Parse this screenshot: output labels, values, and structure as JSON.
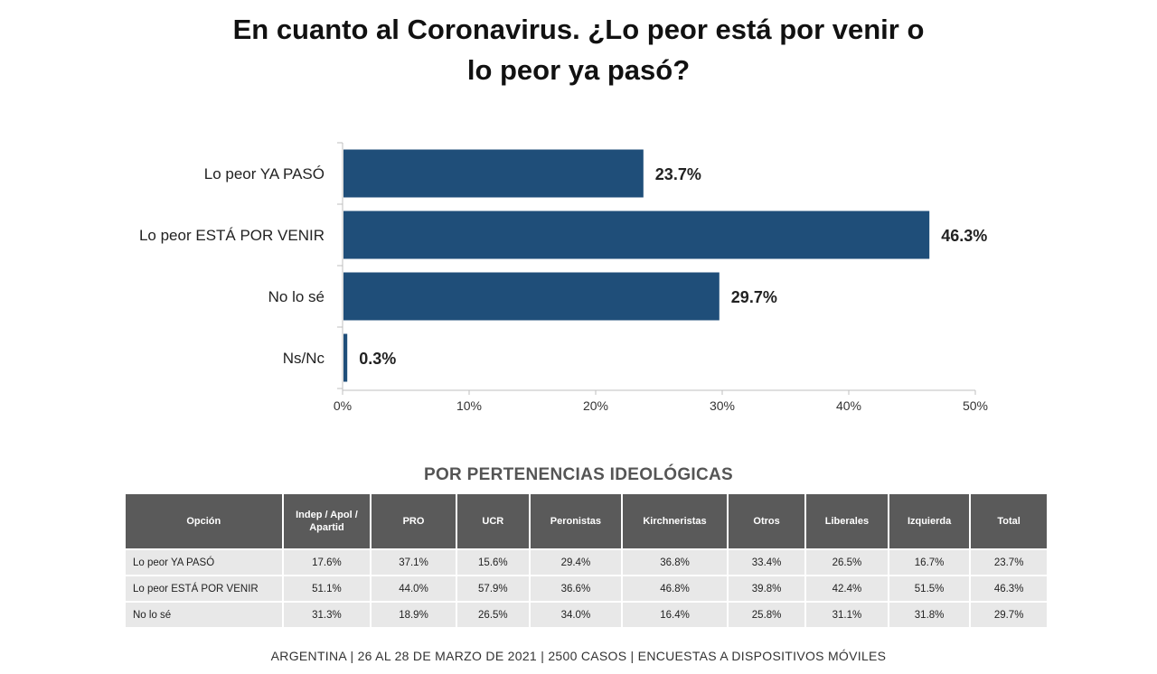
{
  "title": {
    "line1": "En cuanto al Coronavirus. ¿Lo peor está por venir o",
    "line2": "lo peor ya pasó?"
  },
  "chart_data": {
    "type": "bar",
    "orientation": "horizontal",
    "categories": [
      "Lo peor YA PASÓ",
      "Lo peor ESTÁ POR VENIR",
      "No lo sé",
      "Ns/Nc"
    ],
    "values": [
      23.7,
      46.3,
      29.7,
      0.3
    ],
    "value_labels": [
      "23.7%",
      "46.3%",
      "29.7%",
      "0.3%"
    ],
    "xlim": [
      0,
      50
    ],
    "xticks": [
      0,
      10,
      20,
      30,
      40,
      50
    ],
    "xtick_labels": [
      "0%",
      "10%",
      "20%",
      "30%",
      "40%",
      "50%"
    ],
    "grid": false,
    "bar_color": "#1f4e79"
  },
  "table": {
    "subtitle": "POR PERTENENCIAS IDEOLÓGICAS",
    "headers": [
      "Opción",
      "Indep / Apol / Apartid",
      "PRO",
      "UCR",
      "Peronistas",
      "Kirchneristas",
      "Otros",
      "Liberales",
      "Izquierda",
      "Total"
    ],
    "rows": [
      [
        "Lo peor YA PASÓ",
        "17.6%",
        "37.1%",
        "15.6%",
        "29.4%",
        "36.8%",
        "33.4%",
        "26.5%",
        "16.7%",
        "23.7%"
      ],
      [
        "Lo peor ESTÁ POR VENIR",
        "51.1%",
        "44.0%",
        "57.9%",
        "36.6%",
        "46.8%",
        "39.8%",
        "42.4%",
        "51.5%",
        "46.3%"
      ],
      [
        "No lo sé",
        "31.3%",
        "18.9%",
        "26.5%",
        "34.0%",
        "16.4%",
        "25.8%",
        "31.1%",
        "31.8%",
        "29.7%"
      ]
    ]
  },
  "footer": "ARGENTINA | 26 AL 28 DE MARZO DE 2021 | 2500 CASOS | ENCUESTAS A DISPOSITIVOS MÓVILES"
}
